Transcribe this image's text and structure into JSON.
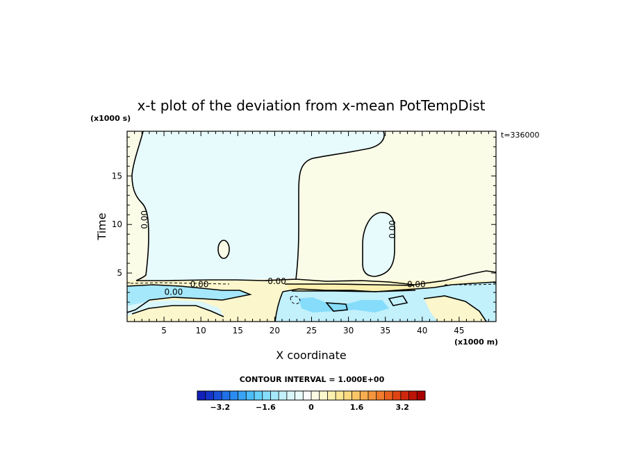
{
  "chart_data": {
    "type": "heatmap",
    "title": "x-t plot of the deviation from x-mean PotTempDist",
    "time_annotation": "t=336000",
    "xlabel": "X coordinate",
    "ylabel": "Time",
    "x_unit": "(x1000 m)",
    "y_unit": "(x1000 s)",
    "xlim": [
      0,
      50
    ],
    "ylim": [
      0,
      19.6
    ],
    "x_ticks": [
      5,
      10,
      15,
      20,
      25,
      30,
      35,
      40,
      45
    ],
    "y_ticks": [
      5,
      10,
      15
    ],
    "contour_labels": [
      {
        "text": "0.00",
        "x": 2.4,
        "y": 10.5,
        "rotate": -90
      },
      {
        "text": "0.00",
        "x": 36.0,
        "y": 9.5,
        "rotate": -90
      },
      {
        "text": "0.00",
        "x": 20.3,
        "y": 4.1,
        "rotate": 0
      },
      {
        "text": "0.00",
        "x": 9.8,
        "y": 3.8,
        "rotate": 0
      },
      {
        "text": "0.00",
        "x": 6.3,
        "y": 3.0,
        "rotate": 0
      },
      {
        "text": "0.00",
        "x": 39.2,
        "y": 3.8,
        "rotate": 0
      }
    ],
    "contour_interval_text": "CONTOUR INTERVAL = 1.000E+00",
    "colorbar": {
      "vmin": -4,
      "vmax": 4,
      "tick_values": [
        -3.2,
        -1.6,
        0,
        1.6,
        3.2
      ],
      "tick_labels": [
        "−3.2",
        "−1.6",
        "0",
        "1.6",
        "3.2"
      ],
      "colors": [
        "#1020b8",
        "#1535c8",
        "#1a50d8",
        "#2070e6",
        "#2a8cf0",
        "#38a4f6",
        "#4cbcfa",
        "#66d0fb",
        "#86ddfb",
        "#a6e8fb",
        "#c2f0fb",
        "#d9f6fb",
        "#eafbfc",
        "#fafdfb",
        "#fbfbe4",
        "#fbf6cc",
        "#fbf0b0",
        "#fbe696",
        "#fbd980",
        "#fbc668",
        "#f8ae50",
        "#f5963e",
        "#f07c2c",
        "#e8601e",
        "#de4414",
        "#d0280c",
        "#bc1408",
        "#a80000"
      ]
    }
  }
}
